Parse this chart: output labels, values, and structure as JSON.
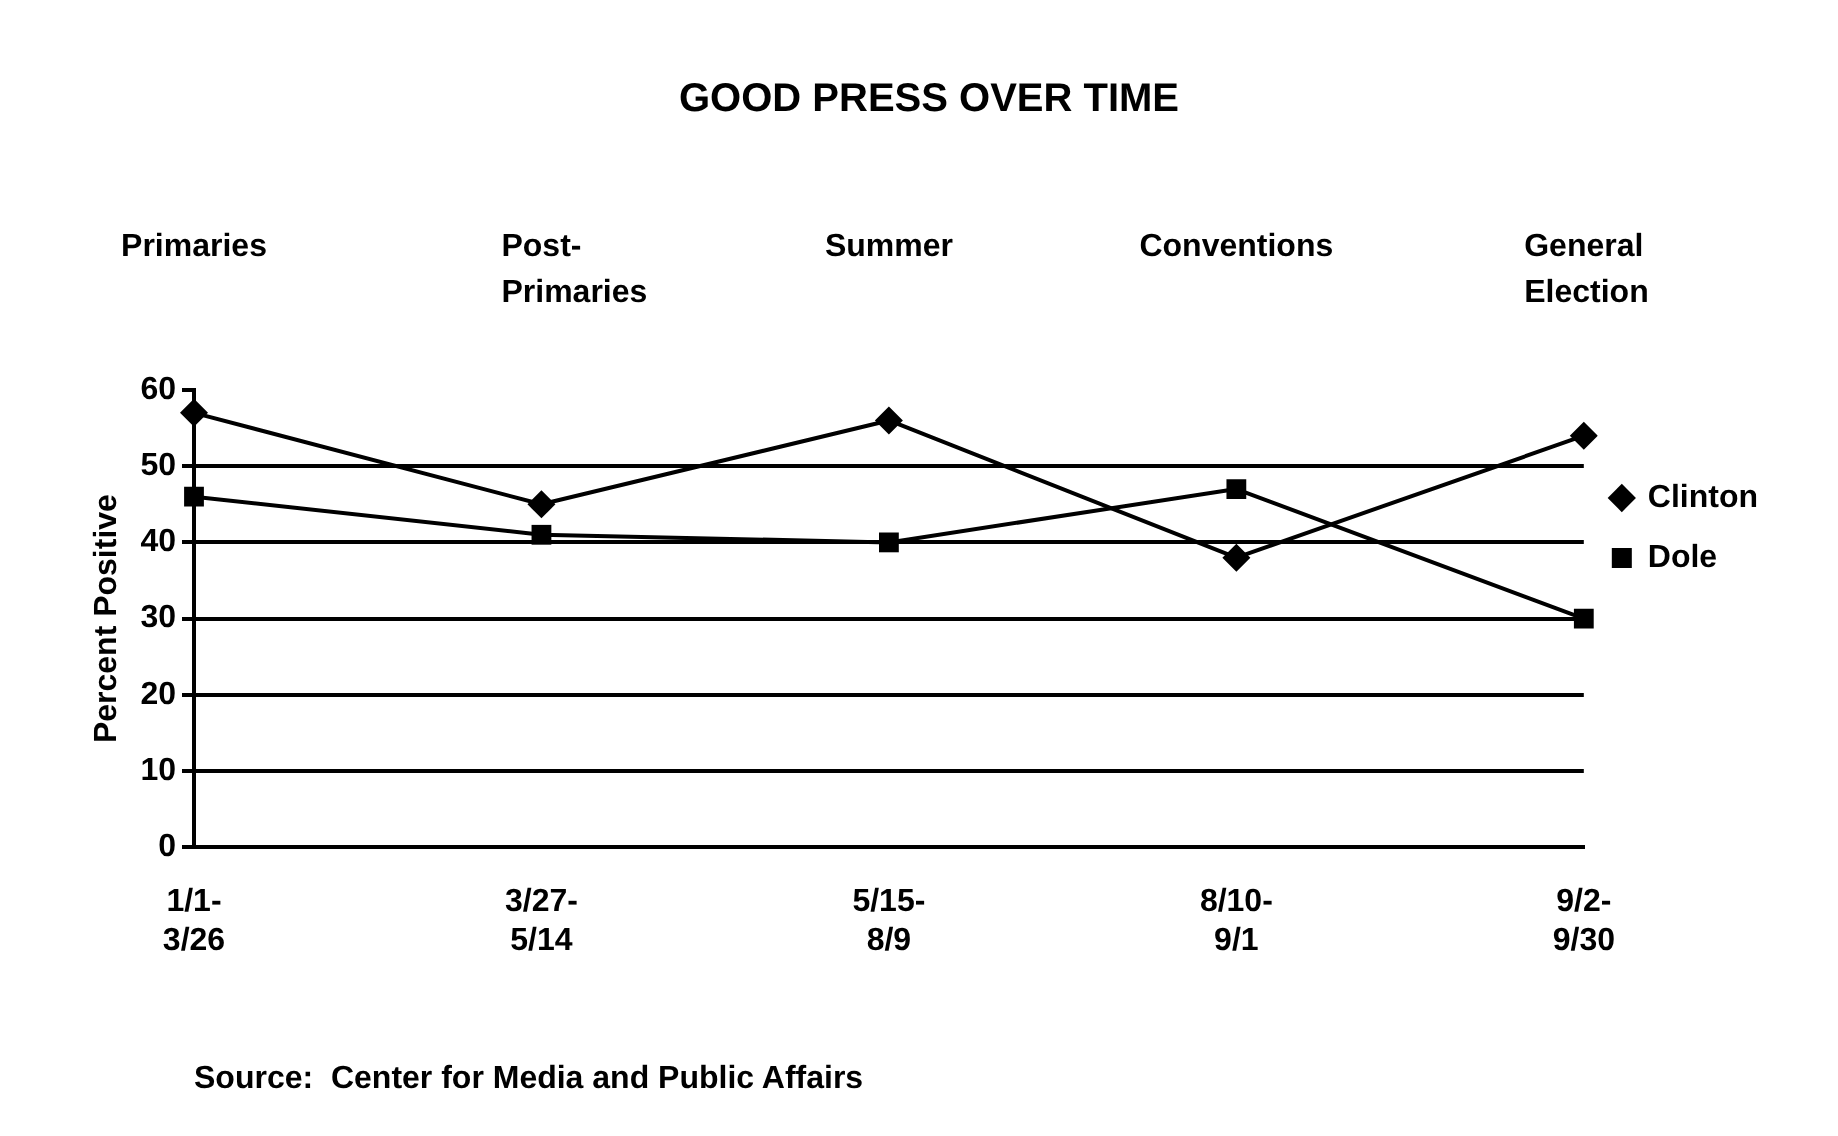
{
  "chart_data": {
    "type": "line",
    "title": "GOOD PRESS OVER TIME",
    "ylabel": "Percent Positive",
    "categories": [
      "1/1-3/26",
      "3/27-5/14",
      "5/15-8/9",
      "8/10-9/1",
      "9/2-9/30"
    ],
    "series": [
      {
        "name": "Clinton",
        "color": "#000000",
        "marker": "diamond",
        "values": [
          57,
          45,
          56,
          38,
          54
        ]
      },
      {
        "name": "Dole",
        "color": "#000000",
        "marker": "square",
        "values": [
          46,
          41,
          40,
          47,
          30
        ]
      }
    ],
    "ylim": [
      0,
      60
    ],
    "yticks": [
      0,
      10,
      20,
      30,
      40,
      50,
      60
    ],
    "grid": "y",
    "legend": "right",
    "line_style": "solid",
    "annotations": [
      "Primaries",
      "Post-Primaries",
      "Summer",
      "Conventions",
      "General Election",
      "Source:  Center for Media and Public Affairs"
    ]
  }
}
